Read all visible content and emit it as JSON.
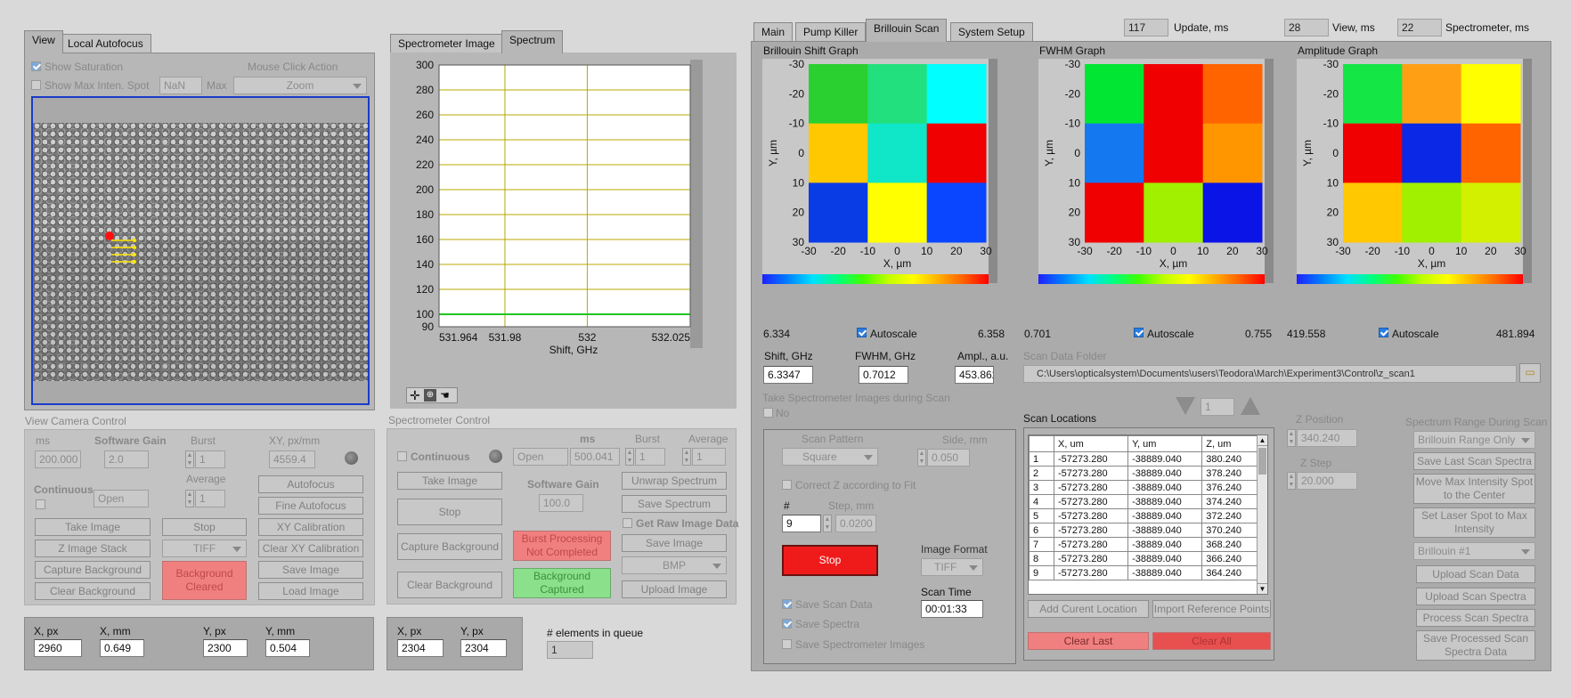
{
  "left_tabs": {
    "view": "View",
    "autofocus": "Local Autofocus"
  },
  "view": {
    "show_saturation": "Show Saturation",
    "show_max_spot": "Show Max Inten. Spot",
    "nan_value": "NaN",
    "max_label": "Max",
    "mouse_click_action_label": "Mouse Click Action",
    "mouse_click_action": "Zoom"
  },
  "camera_control": {
    "title": "View Camera Control",
    "ms_label": "ms",
    "ms_value": "200.000",
    "gain_label": "Software Gain",
    "gain_value": "2.0",
    "burst_label": "Burst",
    "burst_value": "1",
    "xy_label": "XY, px/mm",
    "xy_value": "4559.4",
    "continuous_label": "Continuous",
    "open_value": "Open",
    "average_label": "Average",
    "average_value": "1",
    "buttons": {
      "autofocus": "Autofocus",
      "fine_autofocus": "Fine Autofocus",
      "take_image": "Take Image",
      "stop": "Stop",
      "xy_calibration": "XY Calibration",
      "z_image_stack": "Z Image Stack",
      "tiff": "TIFF",
      "clear_xy_calibration": "Clear XY Calibration",
      "capture_background": "Capture Background",
      "background_cleared": "Background Cleared",
      "save_image": "Save Image",
      "clear_background": "Clear Background",
      "load_image": "Load Image"
    }
  },
  "coords_left": {
    "x_px_label": "X, px",
    "x_px": "2960",
    "x_mm_label": "X, mm",
    "x_mm": "0.649",
    "y_px_label": "Y, px",
    "y_px": "2300",
    "y_mm_label": "Y, mm",
    "y_mm": "0.504"
  },
  "mid_tabs": {
    "spectrometer_image": "Spectrometer Image",
    "spectrum": "Spectrum"
  },
  "spectrum_chart": {
    "xlabel": "Shift, GHz",
    "y_ticks": [
      "300",
      "280",
      "260",
      "240",
      "220",
      "200",
      "180",
      "160",
      "140",
      "120",
      "100",
      "90"
    ],
    "x_ticks": [
      "531.964",
      "531.98",
      "532",
      "532.025"
    ]
  },
  "chart_data": {
    "type": "line",
    "xlabel": "Shift, GHz",
    "ylabel": "",
    "xlim": [
      531.964,
      532.025
    ],
    "ylim": [
      90,
      300
    ],
    "series": [
      {
        "x": [
          531.964,
          532.025
        ],
        "values": [
          100,
          100
        ]
      }
    ]
  },
  "spectrometer_control": {
    "title": "Spectrometer Control",
    "continuous_label": "Continuous",
    "ms_label": "ms",
    "burst_label": "Burst",
    "average_label": "Average",
    "open_value": "Open",
    "ms_value": "500.041",
    "burst_value": "1",
    "average_value": "1",
    "gain_label": "Software Gain",
    "gain_value": "100.0",
    "get_raw": "Get Raw Image Data",
    "buttons": {
      "take_image": "Take Image",
      "unwrap_spectrum": "Unwrap Spectrum",
      "stop": "Stop",
      "save_spectrum": "Save Spectrum",
      "capture_background": "Capture Background",
      "burst_processing": "Burst Processing Not Completed",
      "save_image": "Save Image",
      "clear_background": "Clear Background",
      "background_captured": "Background Captured",
      "bmp": "BMP",
      "upload_image": "Upload Image"
    }
  },
  "coords_mid": {
    "x_px_label": "X, px",
    "x_px": "2304",
    "y_px_label": "Y, px",
    "y_px": "2304"
  },
  "queue": {
    "label": "# elements in queue",
    "value": "1"
  },
  "right_tabs": {
    "main": "Main",
    "pump_killer": "Pump Killer",
    "brillouin_scan": "Brillouin Scan",
    "system_setup": "System Setup"
  },
  "timers": {
    "update_value": "117",
    "update_label": "Update, ms",
    "view_value": "28",
    "view_label": "View, ms",
    "spectrometer_value": "22",
    "spectrometer_label": "Spectrometer, ms"
  },
  "heatmaps": [
    {
      "title": "Brillouin Shift Graph",
      "xlabel": "X, µm",
      "ylabel": "Y, µm",
      "min": "6.334",
      "max": "6.358",
      "autoscale": "Autoscale",
      "colors": [
        "#2ad030",
        "#22e07e",
        "#00ffff",
        "#ffc800",
        "#10e6c8",
        "#f00000",
        "#0a3ce6",
        "#ffff00",
        "#0a46ff"
      ]
    },
    {
      "title": "FWHM Graph",
      "xlabel": "X, µm",
      "ylabel": "Y, µm",
      "min": "0.701",
      "max": "0.755",
      "autoscale": "Autoscale",
      "colors": [
        "#00e632",
        "#f00000",
        "#ff6400",
        "#1478f0",
        "#f00000",
        "#ff9600",
        "#f00000",
        "#a0f000",
        "#0a14e6"
      ]
    },
    {
      "title": "Amplitude Graph",
      "xlabel": "X, µm",
      "ylabel": "Y, µm",
      "min": "419.558",
      "max": "481.894",
      "autoscale": "Autoscale",
      "colors": [
        "#14e646",
        "#ffa014",
        "#ffff00",
        "#f00000",
        "#0a28e6",
        "#ff6400",
        "#ffc800",
        "#a0f000",
        "#d2f000"
      ]
    }
  ],
  "heatmap_ticks": {
    "x": [
      "-30",
      "-20",
      "-10",
      "0",
      "10",
      "20",
      "30"
    ],
    "y": [
      "-30",
      "-20",
      "-10",
      "0",
      "10",
      "20",
      "30"
    ]
  },
  "readouts": {
    "shift_label": "Shift, GHz",
    "shift": "6.3347",
    "fwhm_label": "FWHM, GHz",
    "fwhm": "0.7012",
    "ampl_label": "Ampl., a.u.",
    "ampl": "453.862"
  },
  "scan_folder": {
    "label": "Scan Data Folder",
    "path": "C:\\Users\\opticalsystem\\Documents\\users\\Teodora\\March\\Experiment3\\Control\\z_scan1"
  },
  "scan": {
    "take_images_label": "Take Spectrometer Images during Scan",
    "no_label": "No",
    "pattern_label": "Scan Pattern",
    "pattern": "Square",
    "side_label": "Side, mm",
    "side": "0.050",
    "correct_z": "Correct Z according to Fit",
    "count_label": "#",
    "count": "9",
    "step_label": "Step, mm",
    "step": "0.0200",
    "stop": "Stop",
    "image_format_label": "Image Format",
    "image_format": "TIFF",
    "scan_time_label": "Scan Time",
    "scan_time": "00:01:33",
    "save_scan_data": "Save Scan Data",
    "save_spectra": "Save Spectra",
    "save_spectrometer_images": "Save Spectrometer Images",
    "nav_value": "1"
  },
  "locations": {
    "title": "Scan Locations",
    "headers": [
      "X, um",
      "Y, um",
      "Z, um"
    ],
    "rows": [
      [
        "1",
        "-57273.280",
        "-38889.040",
        "380.240"
      ],
      [
        "2",
        "-57273.280",
        "-38889.040",
        "378.240"
      ],
      [
        "3",
        "-57273.280",
        "-38889.040",
        "376.240"
      ],
      [
        "4",
        "-57273.280",
        "-38889.040",
        "374.240"
      ],
      [
        "5",
        "-57273.280",
        "-38889.040",
        "372.240"
      ],
      [
        "6",
        "-57273.280",
        "-38889.040",
        "370.240"
      ],
      [
        "7",
        "-57273.280",
        "-38889.040",
        "368.240"
      ],
      [
        "8",
        "-57273.280",
        "-38889.040",
        "366.240"
      ],
      [
        "9",
        "-57273.280",
        "-38889.040",
        "364.240"
      ]
    ],
    "add_current": "Add Curent Location",
    "import_ref": "Import Reference Points",
    "clear_last": "Clear Last",
    "clear_all": "Clear All"
  },
  "z": {
    "pos_label": "Z Position",
    "pos": "340.240",
    "step_label": "Z Step",
    "step": "20.000"
  },
  "range": {
    "label": "Spectrum Range During Scan",
    "value": "Brillouin Range Only",
    "save_last": "Save Last Scan Spectra",
    "move_max": "Move Max Intensity Spot to the Center",
    "set_laser": "Set Laser Spot to Max Intensity",
    "brillouin": "Brillouin #1",
    "upload_scan_data": "Upload Scan Data",
    "upload_scan_spectra": "Upload Scan Spectra",
    "process_scan_spectra": "Process Scan Spectra",
    "save_processed": "Save Processed Scan Spectra Data"
  }
}
